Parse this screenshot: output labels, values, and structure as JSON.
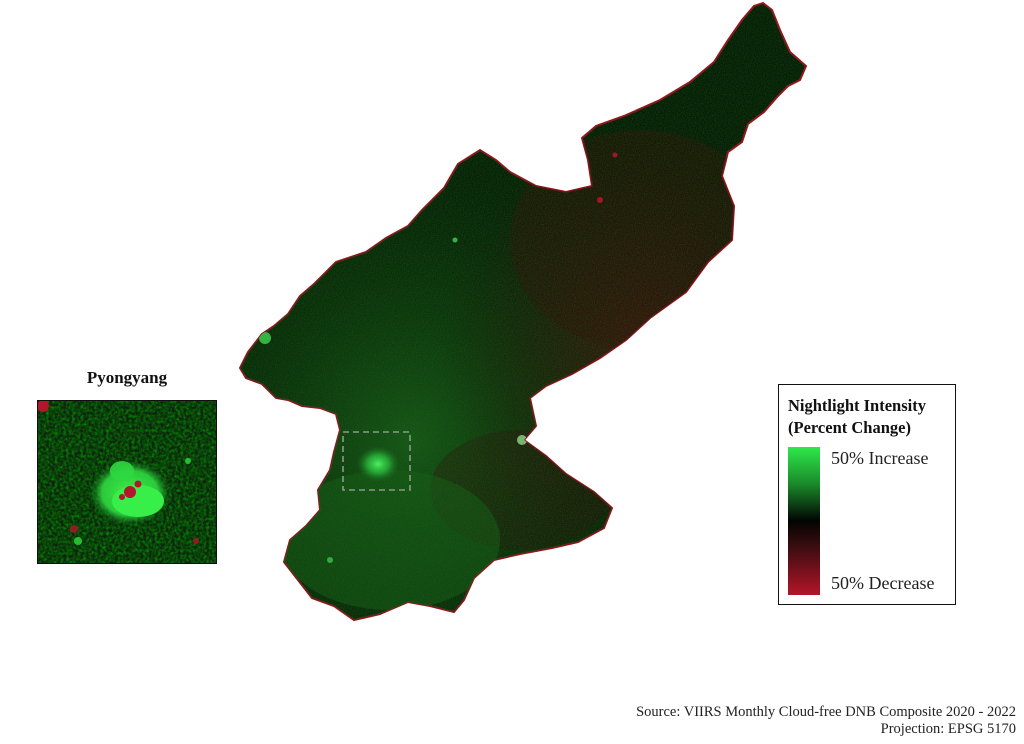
{
  "map": {
    "region": "North Korea",
    "colors": {
      "increase": "#2ee84a",
      "neutral": "#050a05",
      "decrease": "#b3152a",
      "border": "#9c1020"
    }
  },
  "inset": {
    "title": "Pyongyang"
  },
  "legend": {
    "title_line1": "Nightlight Intensity",
    "title_line2": "(Percent Change)",
    "high_label": "50% Increase",
    "low_label": "50% Decrease"
  },
  "footer": {
    "source": "Source: VIIRS Monthly Cloud-free DNB Composite 2020 - 2022",
    "projection": "Projection: EPSG 5170"
  }
}
